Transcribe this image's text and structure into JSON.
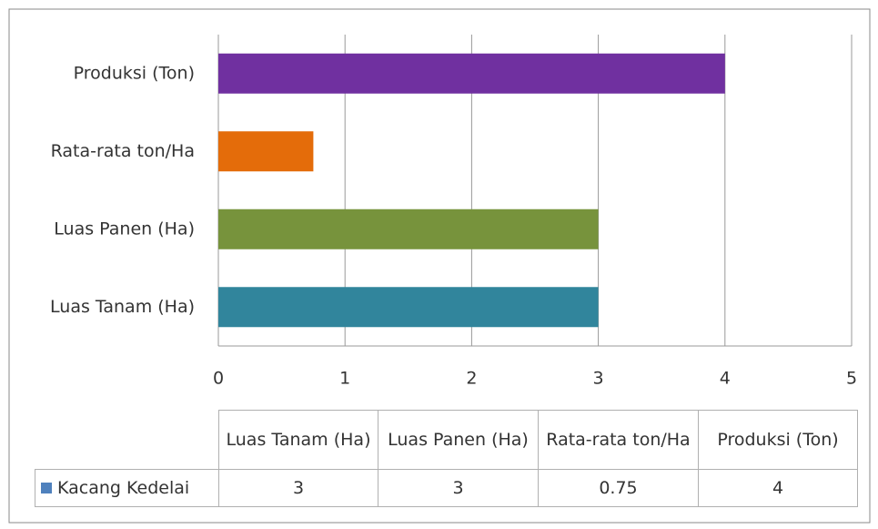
{
  "chart_data": {
    "type": "bar",
    "orientation": "horizontal",
    "categories": [
      "Luas Tanam (Ha)",
      "Luas Panen (Ha)",
      "Rata-rata ton/Ha",
      "Produksi (Ton)"
    ],
    "series": [
      {
        "name": "Kacang Kedelai",
        "color": "#4f81bd",
        "values": [
          3,
          3,
          0.75,
          4
        ]
      }
    ],
    "bar_colors": [
      "#31859c",
      "#77933c",
      "#e46c0a",
      "#7030a0"
    ],
    "xlim": [
      0,
      5
    ],
    "xticks": [
      0,
      1,
      2,
      3,
      4,
      5
    ],
    "grid": true,
    "data_table": true
  }
}
